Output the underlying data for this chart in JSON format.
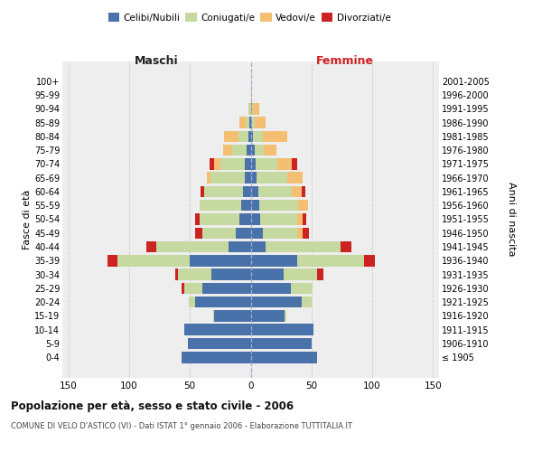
{
  "age_groups": [
    "100+",
    "95-99",
    "90-94",
    "85-89",
    "80-84",
    "75-79",
    "70-74",
    "65-69",
    "60-64",
    "55-59",
    "50-54",
    "45-49",
    "40-44",
    "35-39",
    "30-34",
    "25-29",
    "20-24",
    "15-19",
    "10-14",
    "5-9",
    "0-4"
  ],
  "birth_years": [
    "≤ 1905",
    "1906-1910",
    "1911-1915",
    "1916-1920",
    "1921-1925",
    "1926-1930",
    "1931-1935",
    "1936-1940",
    "1941-1945",
    "1946-1950",
    "1951-1955",
    "1956-1960",
    "1961-1965",
    "1966-1970",
    "1971-1975",
    "1976-1980",
    "1981-1985",
    "1986-1990",
    "1991-1995",
    "1996-2000",
    "2001-2005"
  ],
  "maschi_celibi": [
    0,
    0,
    0,
    1,
    2,
    3,
    5,
    5,
    6,
    8,
    9,
    12,
    18,
    50,
    32,
    40,
    46,
    30,
    55,
    52,
    57
  ],
  "maschi_coniugati": [
    0,
    0,
    1,
    3,
    8,
    12,
    20,
    28,
    32,
    34,
    33,
    28,
    60,
    60,
    28,
    15,
    5,
    1,
    0,
    0,
    0
  ],
  "maschi_vedovi": [
    0,
    0,
    1,
    5,
    12,
    8,
    5,
    3,
    0,
    0,
    0,
    0,
    0,
    0,
    0,
    0,
    0,
    0,
    0,
    0,
    0
  ],
  "maschi_divorziati": [
    0,
    0,
    0,
    0,
    0,
    0,
    4,
    0,
    3,
    0,
    4,
    6,
    8,
    8,
    2,
    2,
    0,
    0,
    0,
    0,
    0
  ],
  "femmine_nubili": [
    0,
    0,
    1,
    1,
    2,
    3,
    4,
    5,
    6,
    7,
    8,
    10,
    12,
    38,
    27,
    33,
    42,
    28,
    52,
    50,
    55
  ],
  "femmine_coniugate": [
    0,
    0,
    1,
    2,
    8,
    8,
    18,
    25,
    28,
    32,
    30,
    28,
    62,
    55,
    28,
    18,
    8,
    1,
    0,
    0,
    0
  ],
  "femmine_vedove": [
    0,
    1,
    5,
    9,
    20,
    10,
    12,
    13,
    8,
    8,
    5,
    5,
    0,
    0,
    0,
    0,
    0,
    0,
    0,
    0,
    0
  ],
  "femmine_divorziate": [
    0,
    0,
    0,
    0,
    0,
    0,
    4,
    0,
    3,
    0,
    3,
    5,
    9,
    9,
    5,
    0,
    0,
    0,
    0,
    0,
    0
  ],
  "color_celibi": "#4a72aa",
  "color_coniugati": "#c5d9a0",
  "color_vedovi": "#f4bf72",
  "color_divorziati": "#cc2222",
  "xlim": 155,
  "bg_color": "#eeeeee",
  "grid_color": "#cccccc",
  "title": "Popolazione per età, sesso e stato civile - 2006",
  "subtitle": "COMUNE DI VELO D'ASTICO (VI) - Dati ISTAT 1° gennaio 2006 - Elaborazione TUTTITALIA.IT",
  "ylabel_left": "Fasce di età",
  "ylabel_right": "Anni di nascita",
  "label_maschi": "Maschi",
  "label_femmine": "Femmine",
  "legend_labels": [
    "Celibi/Nubili",
    "Coniugati/e",
    "Vedovi/e",
    "Divorziati/e"
  ]
}
